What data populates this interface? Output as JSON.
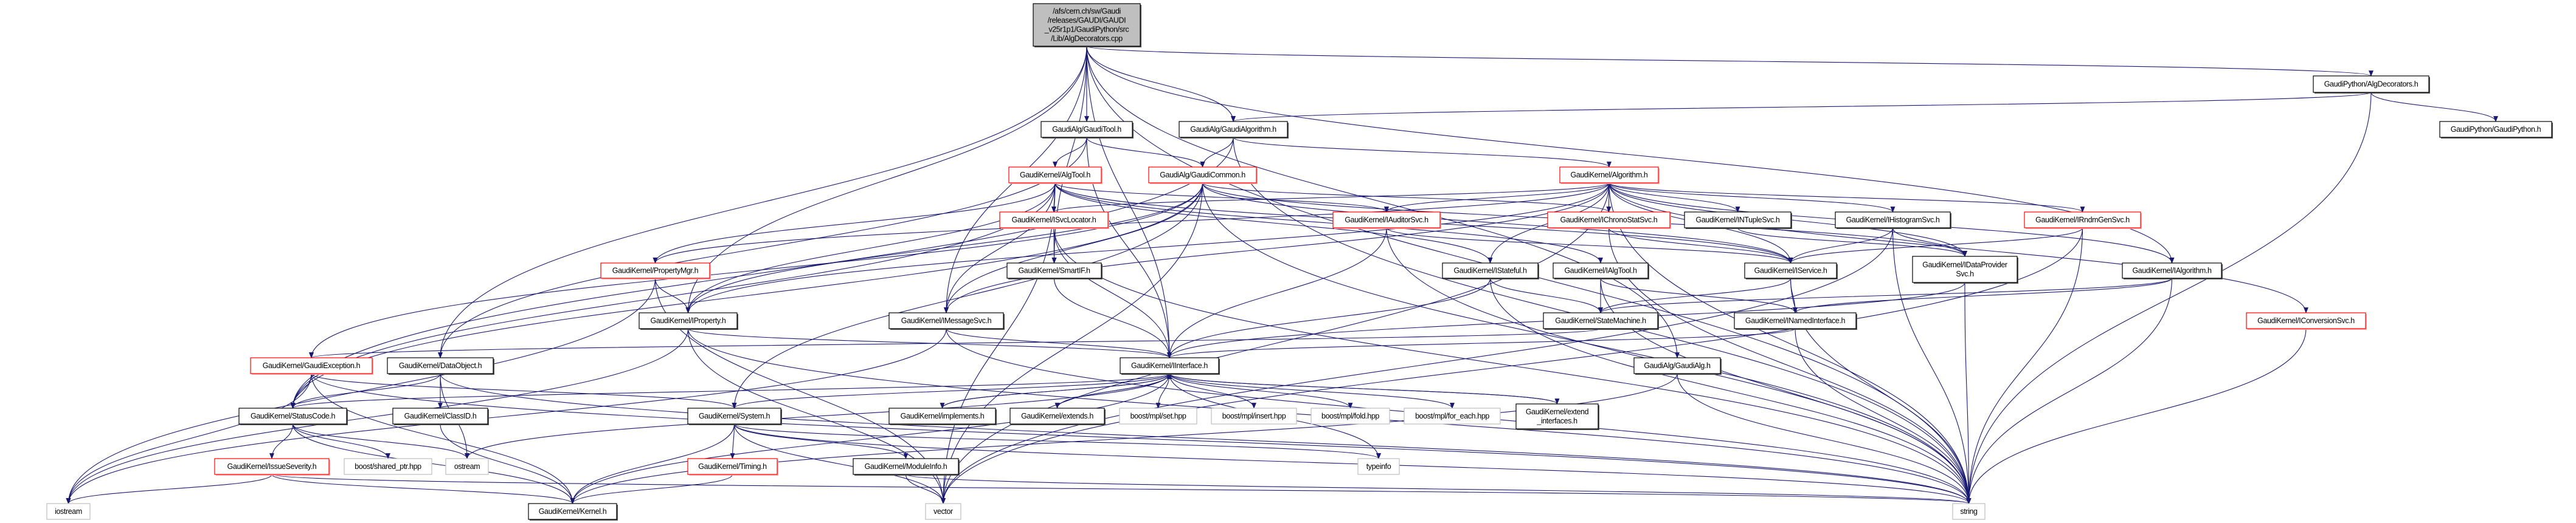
{
  "graph": {
    "edge_color": "#191970",
    "node_styles": {
      "root": {
        "fill": "#bfbfbf",
        "stroke": "#000000"
      },
      "documented": {
        "fill": "#ffffff",
        "stroke": "#000000"
      },
      "truncated": {
        "fill": "#ffffff",
        "stroke": "#ff0000"
      },
      "external": {
        "fill": "#ffffff",
        "stroke": "#bfbfbf"
      }
    },
    "nodes": [
      {
        "label": "/afs/cern.ch/sw/Gaudi\n/releases/GAUDI/GAUDI\n_v25r1p1/GaudiPython/src\n/Lib/AlgDecorators.cpp",
        "style": "root"
      },
      {
        "label": "GaudiAlg/GaudiTool.h",
        "style": "documented"
      },
      {
        "label": "GaudiAlg/GaudiAlgorithm.h",
        "style": "documented"
      },
      {
        "label": "GaudiPython/AlgDecorators.h",
        "style": "documented"
      },
      {
        "label": "GaudiPython/GaudiPython.h",
        "style": "documented"
      },
      {
        "label": "GaudiKernel/AlgTool.h",
        "style": "truncated"
      },
      {
        "label": "GaudiAlg/GaudiCommon.h",
        "style": "truncated"
      },
      {
        "label": "GaudiKernel/Algorithm.h",
        "style": "truncated"
      },
      {
        "label": "GaudiKernel/ISvcLocator.h",
        "style": "truncated"
      },
      {
        "label": "GaudiKernel/IAuditorSvc.h",
        "style": "truncated"
      },
      {
        "label": "GaudiKernel/IChronoStatSvc.h",
        "style": "truncated"
      },
      {
        "label": "GaudiKernel/INTupleSvc.h",
        "style": "documented"
      },
      {
        "label": "GaudiKernel/IHistogramSvc.h",
        "style": "documented"
      },
      {
        "label": "GaudiKernel/IRndmGenSvc.h",
        "style": "truncated"
      },
      {
        "label": "GaudiKernel/PropertyMgr.h",
        "style": "truncated"
      },
      {
        "label": "GaudiKernel/SmartIF.h",
        "style": "documented"
      },
      {
        "label": "GaudiKernel/IStateful.h",
        "style": "documented"
      },
      {
        "label": "GaudiKernel/IAlgTool.h",
        "style": "documented"
      },
      {
        "label": "GaudiKernel/IService.h",
        "style": "documented"
      },
      {
        "label": "GaudiKernel/IDataProvider\nSvc.h",
        "style": "documented"
      },
      {
        "label": "GaudiKernel/IAlgorithm.h",
        "style": "documented"
      },
      {
        "label": "GaudiKernel/IProperty.h",
        "style": "documented"
      },
      {
        "label": "GaudiKernel/IMessageSvc.h",
        "style": "documented"
      },
      {
        "label": "GaudiKernel/StateMachine.h",
        "style": "documented"
      },
      {
        "label": "GaudiKernel/INamedInterface.h",
        "style": "documented"
      },
      {
        "label": "GaudiKernel/IConversionSvc.h",
        "style": "truncated"
      },
      {
        "label": "GaudiKernel/GaudiException.h",
        "style": "truncated"
      },
      {
        "label": "GaudiKernel/DataObject.h",
        "style": "documented"
      },
      {
        "label": "GaudiKernel/IInterface.h",
        "style": "documented"
      },
      {
        "label": "GaudiAlg/GaudiAlg.h",
        "style": "documented"
      },
      {
        "label": "GaudiKernel/StatusCode.h",
        "style": "documented"
      },
      {
        "label": "GaudiKernel/ClassID.h",
        "style": "documented"
      },
      {
        "label": "GaudiKernel/System.h",
        "style": "documented"
      },
      {
        "label": "GaudiKernel/implements.h",
        "style": "documented"
      },
      {
        "label": "GaudiKernel/extends.h",
        "style": "documented"
      },
      {
        "label": "boost/mpl/set.hpp",
        "style": "external"
      },
      {
        "label": "boost/mpl/insert.hpp",
        "style": "external"
      },
      {
        "label": "boost/mpl/fold.hpp",
        "style": "external"
      },
      {
        "label": "boost/mpl/for_each.hpp",
        "style": "external"
      },
      {
        "label": "GaudiKernel/extend\n_interfaces.h",
        "style": "documented"
      },
      {
        "label": "GaudiKernel/IssueSeverity.h",
        "style": "truncated"
      },
      {
        "label": "boost/shared_ptr.hpp",
        "style": "external"
      },
      {
        "label": "ostream",
        "style": "external"
      },
      {
        "label": "GaudiKernel/Timing.h",
        "style": "truncated"
      },
      {
        "label": "GaudiKernel/ModuleInfo.h",
        "style": "documented"
      },
      {
        "label": "typeinfo",
        "style": "external"
      },
      {
        "label": "iostream",
        "style": "external"
      },
      {
        "label": "GaudiKernel/Kernel.h",
        "style": "documented"
      },
      {
        "label": "vector",
        "style": "external"
      },
      {
        "label": "string",
        "style": "external"
      }
    ],
    "edges": [
      [
        0,
        1
      ],
      [
        0,
        2
      ],
      [
        0,
        3
      ],
      [
        0,
        27
      ],
      [
        0,
        21
      ],
      [
        0,
        28
      ],
      [
        0,
        15
      ],
      [
        0,
        22
      ],
      [
        0,
        20
      ],
      [
        0,
        29
      ],
      [
        0,
        49
      ],
      [
        1,
        5
      ],
      [
        1,
        6
      ],
      [
        1,
        27
      ],
      [
        1,
        28
      ],
      [
        2,
        6
      ],
      [
        2,
        7
      ],
      [
        2,
        49
      ],
      [
        2,
        30
      ],
      [
        3,
        4
      ],
      [
        3,
        2
      ],
      [
        3,
        49
      ],
      [
        5,
        8
      ],
      [
        5,
        9
      ],
      [
        5,
        14
      ],
      [
        5,
        21
      ],
      [
        5,
        22
      ],
      [
        5,
        16
      ],
      [
        5,
        17
      ],
      [
        5,
        18
      ],
      [
        5,
        48
      ],
      [
        5,
        30
      ],
      [
        6,
        22
      ],
      [
        6,
        10
      ],
      [
        6,
        19
      ],
      [
        6,
        18
      ],
      [
        6,
        21
      ],
      [
        6,
        26
      ],
      [
        6,
        32
      ],
      [
        6,
        49
      ],
      [
        6,
        48
      ],
      [
        6,
        30
      ],
      [
        7,
        9
      ],
      [
        7,
        10
      ],
      [
        7,
        11
      ],
      [
        7,
        12
      ],
      [
        7,
        13
      ],
      [
        7,
        25
      ],
      [
        7,
        20
      ],
      [
        7,
        18
      ],
      [
        7,
        16
      ],
      [
        7,
        19
      ],
      [
        7,
        8
      ],
      [
        7,
        22
      ],
      [
        7,
        14
      ],
      [
        7,
        21
      ],
      [
        7,
        49
      ],
      [
        7,
        48
      ],
      [
        8,
        15
      ],
      [
        8,
        28
      ],
      [
        8,
        49
      ],
      [
        9,
        18
      ],
      [
        9,
        28
      ],
      [
        9,
        49
      ],
      [
        10,
        18
      ],
      [
        10,
        49
      ],
      [
        11,
        19
      ],
      [
        12,
        18
      ],
      [
        12,
        19
      ],
      [
        12,
        49
      ],
      [
        12,
        48
      ],
      [
        13,
        18
      ],
      [
        13,
        49
      ],
      [
        13,
        48
      ],
      [
        14,
        21
      ],
      [
        14,
        46
      ],
      [
        14,
        48
      ],
      [
        15,
        28
      ],
      [
        16,
        28
      ],
      [
        16,
        23
      ],
      [
        16,
        49
      ],
      [
        17,
        24
      ],
      [
        17,
        23
      ],
      [
        17,
        49
      ],
      [
        18,
        24
      ],
      [
        18,
        23
      ],
      [
        18,
        49
      ],
      [
        19,
        28
      ],
      [
        19,
        49
      ],
      [
        20,
        24
      ],
      [
        20,
        23
      ],
      [
        20,
        49
      ],
      [
        21,
        28
      ],
      [
        21,
        46
      ],
      [
        21,
        49
      ],
      [
        21,
        48
      ],
      [
        22,
        28
      ],
      [
        22,
        46
      ],
      [
        22,
        49
      ],
      [
        23,
        26
      ],
      [
        24,
        28
      ],
      [
        24,
        49
      ],
      [
        25,
        49
      ],
      [
        26,
        30
      ],
      [
        26,
        32
      ],
      [
        26,
        46
      ],
      [
        26,
        47
      ],
      [
        26,
        49
      ],
      [
        27,
        30
      ],
      [
        27,
        31
      ],
      [
        27,
        42
      ],
      [
        27,
        49
      ],
      [
        28,
        32
      ],
      [
        28,
        33
      ],
      [
        28,
        34
      ],
      [
        28,
        35
      ],
      [
        28,
        36
      ],
      [
        28,
        37
      ],
      [
        28,
        38
      ],
      [
        28,
        39
      ],
      [
        28,
        45
      ],
      [
        28,
        30
      ],
      [
        28,
        47
      ],
      [
        28,
        42
      ],
      [
        29,
        47
      ],
      [
        29,
        49
      ],
      [
        33,
        28
      ],
      [
        34,
        28
      ],
      [
        39,
        28
      ],
      [
        30,
        40
      ],
      [
        30,
        41
      ],
      [
        30,
        42
      ],
      [
        30,
        47
      ],
      [
        31,
        47
      ],
      [
        32,
        43
      ],
      [
        32,
        44
      ],
      [
        32,
        47
      ],
      [
        32,
        45
      ],
      [
        32,
        49
      ],
      [
        32,
        48
      ],
      [
        40,
        46
      ],
      [
        40,
        47
      ],
      [
        40,
        49
      ],
      [
        43,
        47
      ],
      [
        44,
        48
      ],
      [
        44,
        49
      ]
    ]
  }
}
